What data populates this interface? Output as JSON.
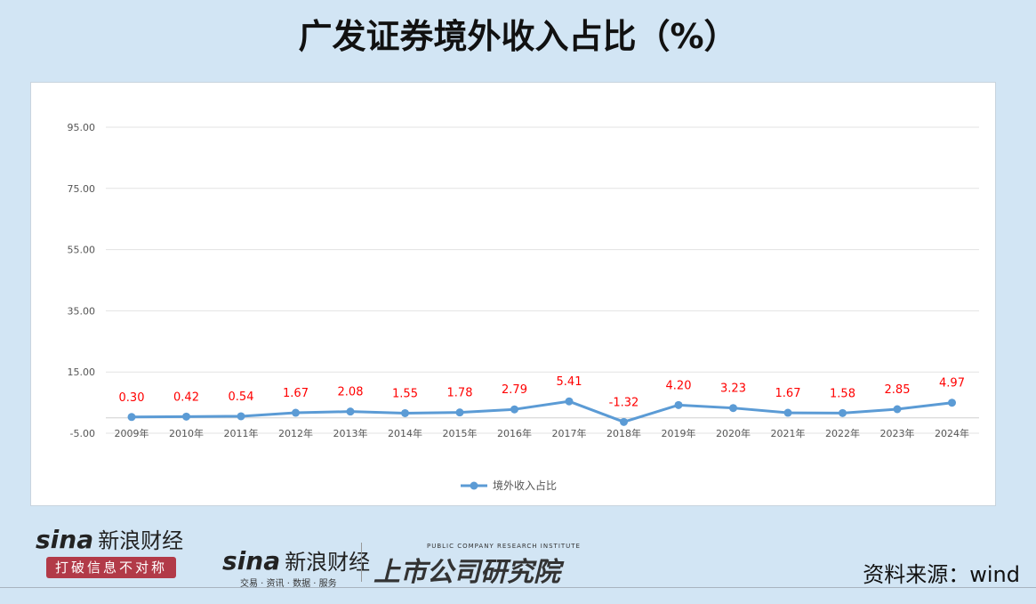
{
  "title": "广发证券境外收入占比（%）",
  "chart_data": {
    "type": "line",
    "title": "广发证券境外收入占比（%）",
    "categories": [
      "2009年",
      "2010年",
      "2011年",
      "2012年",
      "2013年",
      "2014年",
      "2015年",
      "2016年",
      "2017年",
      "2018年",
      "2019年",
      "2020年",
      "2021年",
      "2022年",
      "2023年",
      "2024年"
    ],
    "series": [
      {
        "name": "境外收入占比",
        "values": [
          0.3,
          0.42,
          0.54,
          1.67,
          2.08,
          1.55,
          1.78,
          2.79,
          5.41,
          -1.32,
          4.2,
          3.23,
          1.67,
          1.58,
          2.85,
          4.97
        ],
        "color": "#5b9bd5"
      }
    ],
    "yticks": [
      "95.00",
      "75.00",
      "55.00",
      "35.00",
      "15.00",
      "-5.00"
    ],
    "ylim": [
      -5,
      95
    ],
    "grid": true,
    "data_label_color": "#ff0000",
    "legend": "bottom"
  },
  "footer": {
    "logo1_brand": "sina",
    "logo1_name": "新浪财经",
    "logo1_slogan": "打破信息不对称",
    "logo2_brand": "sina",
    "logo2_name": "新浪财经",
    "logo2_sub": "交易 · 资讯 · 数据 · 服务",
    "logo3_en": "PUBLIC COMPANY RESEARCH INSTITUTE",
    "logo3_cn": "上市公司研究院",
    "source": "资料来源：wind"
  }
}
